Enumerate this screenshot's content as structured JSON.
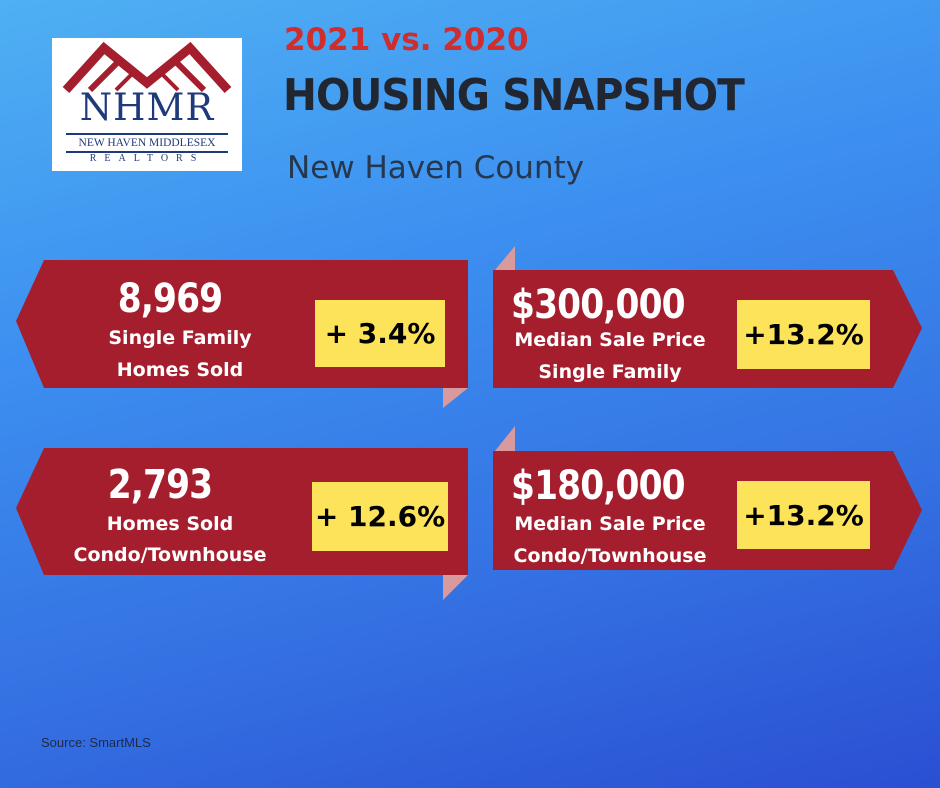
{
  "logo": {
    "abbrev": "NHMR",
    "name": "NEW HAVEN MIDDLESEX",
    "tagline": "REALTORS",
    "colors": {
      "roof": "#a41e2d",
      "text": "#1f3a7a"
    }
  },
  "header": {
    "year_compare": "2021 vs. 2020",
    "title": "HOUSING SNAPSHOT",
    "county": "New Haven County"
  },
  "stats": [
    {
      "value": "8,969",
      "label_line1": "Single Family",
      "label_line2": "Homes Sold",
      "change": "+ 3.4%"
    },
    {
      "value": "$300,000",
      "label_line1": "Median Sale Price",
      "label_line2": "Single Family",
      "change": "+13.2%"
    },
    {
      "value": "2,793",
      "label_line1": "Homes Sold",
      "label_line2": "Condo/Townhouse",
      "change": "+ 12.6%"
    },
    {
      "value": "$180,000",
      "label_line1": "Median Sale Price",
      "label_line2": "Condo/Townhouse",
      "change": "+13.2%"
    }
  ],
  "footer": {
    "source": "Source: SmartMLS"
  },
  "colors": {
    "banner": "#a41e2d",
    "fold": "#d99a9e",
    "change_box": "#fde35a",
    "year_text": "#cf2e2e",
    "background_top": "#4fb0f3",
    "background_bottom": "#2a4fd2"
  }
}
